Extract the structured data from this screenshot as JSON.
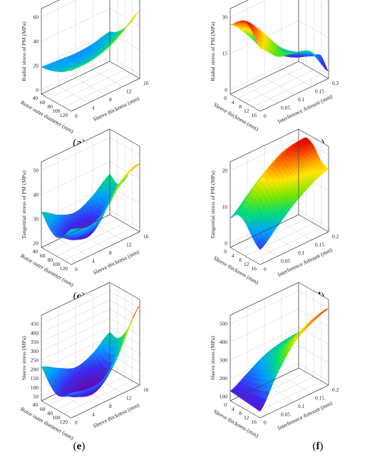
{
  "figure": {
    "panels": [
      {
        "caption": "(a)",
        "caption_letter": "a",
        "z_label": "Radial stress of PM (MPa)",
        "x_label": "Rotor outer diameter (mm)",
        "y_label": "Sleeve thickness (mm)",
        "z_ticks": [
          "0",
          "20",
          "40",
          "60"
        ],
        "x_ticks": [
          "40",
          "60",
          "80",
          "100",
          "120"
        ],
        "y_ticks": [
          "0",
          "4",
          "8",
          "12",
          "16"
        ]
      },
      {
        "caption": "(b)",
        "caption_letter": "b",
        "z_label": "Radial stress of PM (MPa)",
        "x_label": "Sleeve thickness (mm)",
        "y_label": "Interference Amount (mm)",
        "z_ticks": [
          "0",
          "15",
          "30"
        ],
        "x_ticks": [
          "0",
          "4",
          "8",
          "12",
          "16"
        ],
        "y_ticks": [
          "0",
          "0.05",
          "0.1",
          "0.15",
          "0.2"
        ]
      },
      {
        "caption": "(c)",
        "caption_letter": "c",
        "z_label": "Tangential stress of PM (MPa)",
        "x_label": "Rotor outer diameter (mm)",
        "y_label": "Sleeve thickness (mm)",
        "z_ticks": [
          "20",
          "30",
          "40",
          "50"
        ],
        "x_ticks": [
          "40",
          "60",
          "80",
          "100",
          "120"
        ],
        "y_ticks": [
          "0",
          "4",
          "8",
          "12",
          "16"
        ]
      },
      {
        "caption": "(d)",
        "caption_letter": "d",
        "z_label": "Tangential stress of PM (MPa)",
        "x_label": "Sleeve thickness (mm)",
        "y_label": "Interference Amount (mm)",
        "z_ticks": [
          "0",
          "10",
          "20"
        ],
        "x_ticks": [
          "0",
          "4",
          "8",
          "12",
          "16"
        ],
        "y_ticks": [
          "0",
          "0.05",
          "0.1",
          "0.15",
          "0.2"
        ]
      },
      {
        "caption": "(e)",
        "caption_letter": "e",
        "z_label": "Sleeve stress (MPa)",
        "x_label": "Rotor outer diameter (mm)",
        "y_label": "Sleeve thickness (mm)",
        "z_ticks": [
          "50",
          "100",
          "150",
          "200",
          "250",
          "300",
          "350",
          "400",
          "450"
        ],
        "x_ticks": [
          "40",
          "60",
          "80",
          "100",
          "120"
        ],
        "y_ticks": [
          "0",
          "4",
          "8",
          "12",
          "16"
        ]
      },
      {
        "caption": "(f)",
        "caption_letter": "f",
        "z_label": "Sleeve stress (MPa)",
        "x_label": "Sleeve thickness (mm)",
        "y_label": "Interference Amount (mm)",
        "z_ticks": [
          "100",
          "200",
          "300",
          "400",
          "500"
        ],
        "x_ticks": [
          "0",
          "4",
          "8",
          "12",
          "16"
        ],
        "y_ticks": [
          "0",
          "0.05",
          "0.1",
          "0.15",
          "0.2"
        ]
      }
    ]
  },
  "chart_data": [
    {
      "type": "surface",
      "title": "",
      "caption": "(a)",
      "xlabel": "Rotor outer diameter (mm)",
      "ylabel": "Sleeve thickness (mm)",
      "zlabel": "Radial stress of PM (MPa)",
      "xlim": [
        40,
        120
      ],
      "ylim": [
        0,
        16
      ],
      "zlim": [
        0,
        60
      ],
      "x": [
        40,
        60,
        80,
        100,
        120
      ],
      "y": [
        0,
        4,
        8,
        12,
        16
      ],
      "z": [
        [
          20,
          21,
          23,
          26,
          30
        ],
        [
          19,
          20,
          22,
          25,
          30
        ],
        [
          18,
          19,
          22,
          26,
          33
        ],
        [
          19,
          21,
          25,
          31,
          40
        ],
        [
          22,
          25,
          31,
          39,
          50
        ]
      ],
      "grid": true,
      "colormap": "jet"
    },
    {
      "type": "surface",
      "title": "",
      "caption": "(b)",
      "xlabel": "Sleeve thickness (mm)",
      "ylabel": "Interference Amount (mm)",
      "zlabel": "Radial stress of PM (MPa)",
      "xlim": [
        0,
        16
      ],
      "ylim": [
        0,
        0.2
      ],
      "zlim": [
        0,
        35
      ],
      "x": [
        0,
        4,
        8,
        12,
        16
      ],
      "y": [
        0,
        0.05,
        0.1,
        0.15,
        0.2
      ],
      "z": [
        [
          30,
          33,
          35,
          32,
          27
        ],
        [
          22,
          25,
          27,
          24,
          20
        ],
        [
          12,
          15,
          17,
          16,
          18
        ],
        [
          6,
          9,
          11,
          13,
          15
        ],
        [
          2,
          4,
          6,
          8,
          3
        ]
      ],
      "grid": true,
      "colormap": "jet"
    },
    {
      "type": "surface",
      "title": "",
      "caption": "(c)",
      "xlabel": "Rotor outer diameter (mm)",
      "ylabel": "Sleeve thickness (mm)",
      "zlabel": "Tangential stress of PM (MPa)",
      "xlim": [
        40,
        120
      ],
      "ylim": [
        0,
        16
      ],
      "zlim": [
        20,
        50
      ],
      "x": [
        40,
        60,
        80,
        100,
        120
      ],
      "y": [
        0,
        4,
        8,
        12,
        16
      ],
      "z": [
        [
          33,
          29,
          27,
          29,
          33
        ],
        [
          29,
          25,
          23,
          26,
          31
        ],
        [
          27,
          23,
          22,
          27,
          34
        ],
        [
          30,
          27,
          30,
          37,
          42
        ],
        [
          35,
          33,
          36,
          42,
          45
        ]
      ],
      "grid": true,
      "colormap": "jet"
    },
    {
      "type": "surface",
      "title": "",
      "caption": "(d)",
      "xlabel": "Sleeve thickness (mm)",
      "ylabel": "Interference Amount (mm)",
      "zlabel": "Tangential stress of PM (MPa)",
      "xlim": [
        0,
        16
      ],
      "ylim": [
        0,
        0.2
      ],
      "zlim": [
        0,
        22
      ],
      "x": [
        0,
        4,
        8,
        12,
        16
      ],
      "y": [
        0,
        0.05,
        0.1,
        0.15,
        0.2
      ],
      "z": [
        [
          8,
          10,
          9,
          6,
          4
        ],
        [
          12,
          15,
          14,
          11,
          8
        ],
        [
          16,
          19,
          18,
          15,
          12
        ],
        [
          19,
          21,
          20,
          17,
          15
        ],
        [
          20,
          22,
          21,
          18,
          17
        ]
      ],
      "grid": true,
      "colormap": "jet"
    },
    {
      "type": "surface",
      "title": "",
      "caption": "(e)",
      "xlabel": "Rotor outer diameter (mm)",
      "ylabel": "Sleeve thickness (mm)",
      "zlabel": "Sleeve stress (MPa)",
      "xlim": [
        40,
        120
      ],
      "ylim": [
        0,
        16
      ],
      "zlim": [
        40,
        470
      ],
      "x": [
        40,
        60,
        80,
        100,
        120
      ],
      "y": [
        0,
        4,
        8,
        12,
        16
      ],
      "z": [
        [
          220,
          160,
          120,
          130,
          170
        ],
        [
          170,
          110,
          70,
          90,
          150
        ],
        [
          130,
          70,
          40,
          80,
          170
        ],
        [
          160,
          110,
          110,
          180,
          300
        ],
        [
          230,
          220,
          270,
          360,
          460
        ]
      ],
      "grid": true,
      "colormap": "jet"
    },
    {
      "type": "surface",
      "title": "",
      "caption": "(f)",
      "xlabel": "Sleeve thickness (mm)",
      "ylabel": "Interference Amount (mm)",
      "zlabel": "Sleeve stress (MPa)",
      "xlim": [
        0,
        16
      ],
      "ylim": [
        0,
        0.2
      ],
      "zlim": [
        0,
        500
      ],
      "x": [
        0,
        4,
        8,
        12,
        16
      ],
      "y": [
        0,
        0.05,
        0.1,
        0.15,
        0.2
      ],
      "z": [
        [
          60,
          55,
          50,
          45,
          40
        ],
        [
          120,
          130,
          150,
          180,
          220
        ],
        [
          180,
          210,
          250,
          300,
          360
        ],
        [
          210,
          250,
          310,
          380,
          430
        ],
        [
          220,
          270,
          340,
          420,
          470
        ]
      ],
      "grid": true,
      "colormap": "jet"
    }
  ]
}
